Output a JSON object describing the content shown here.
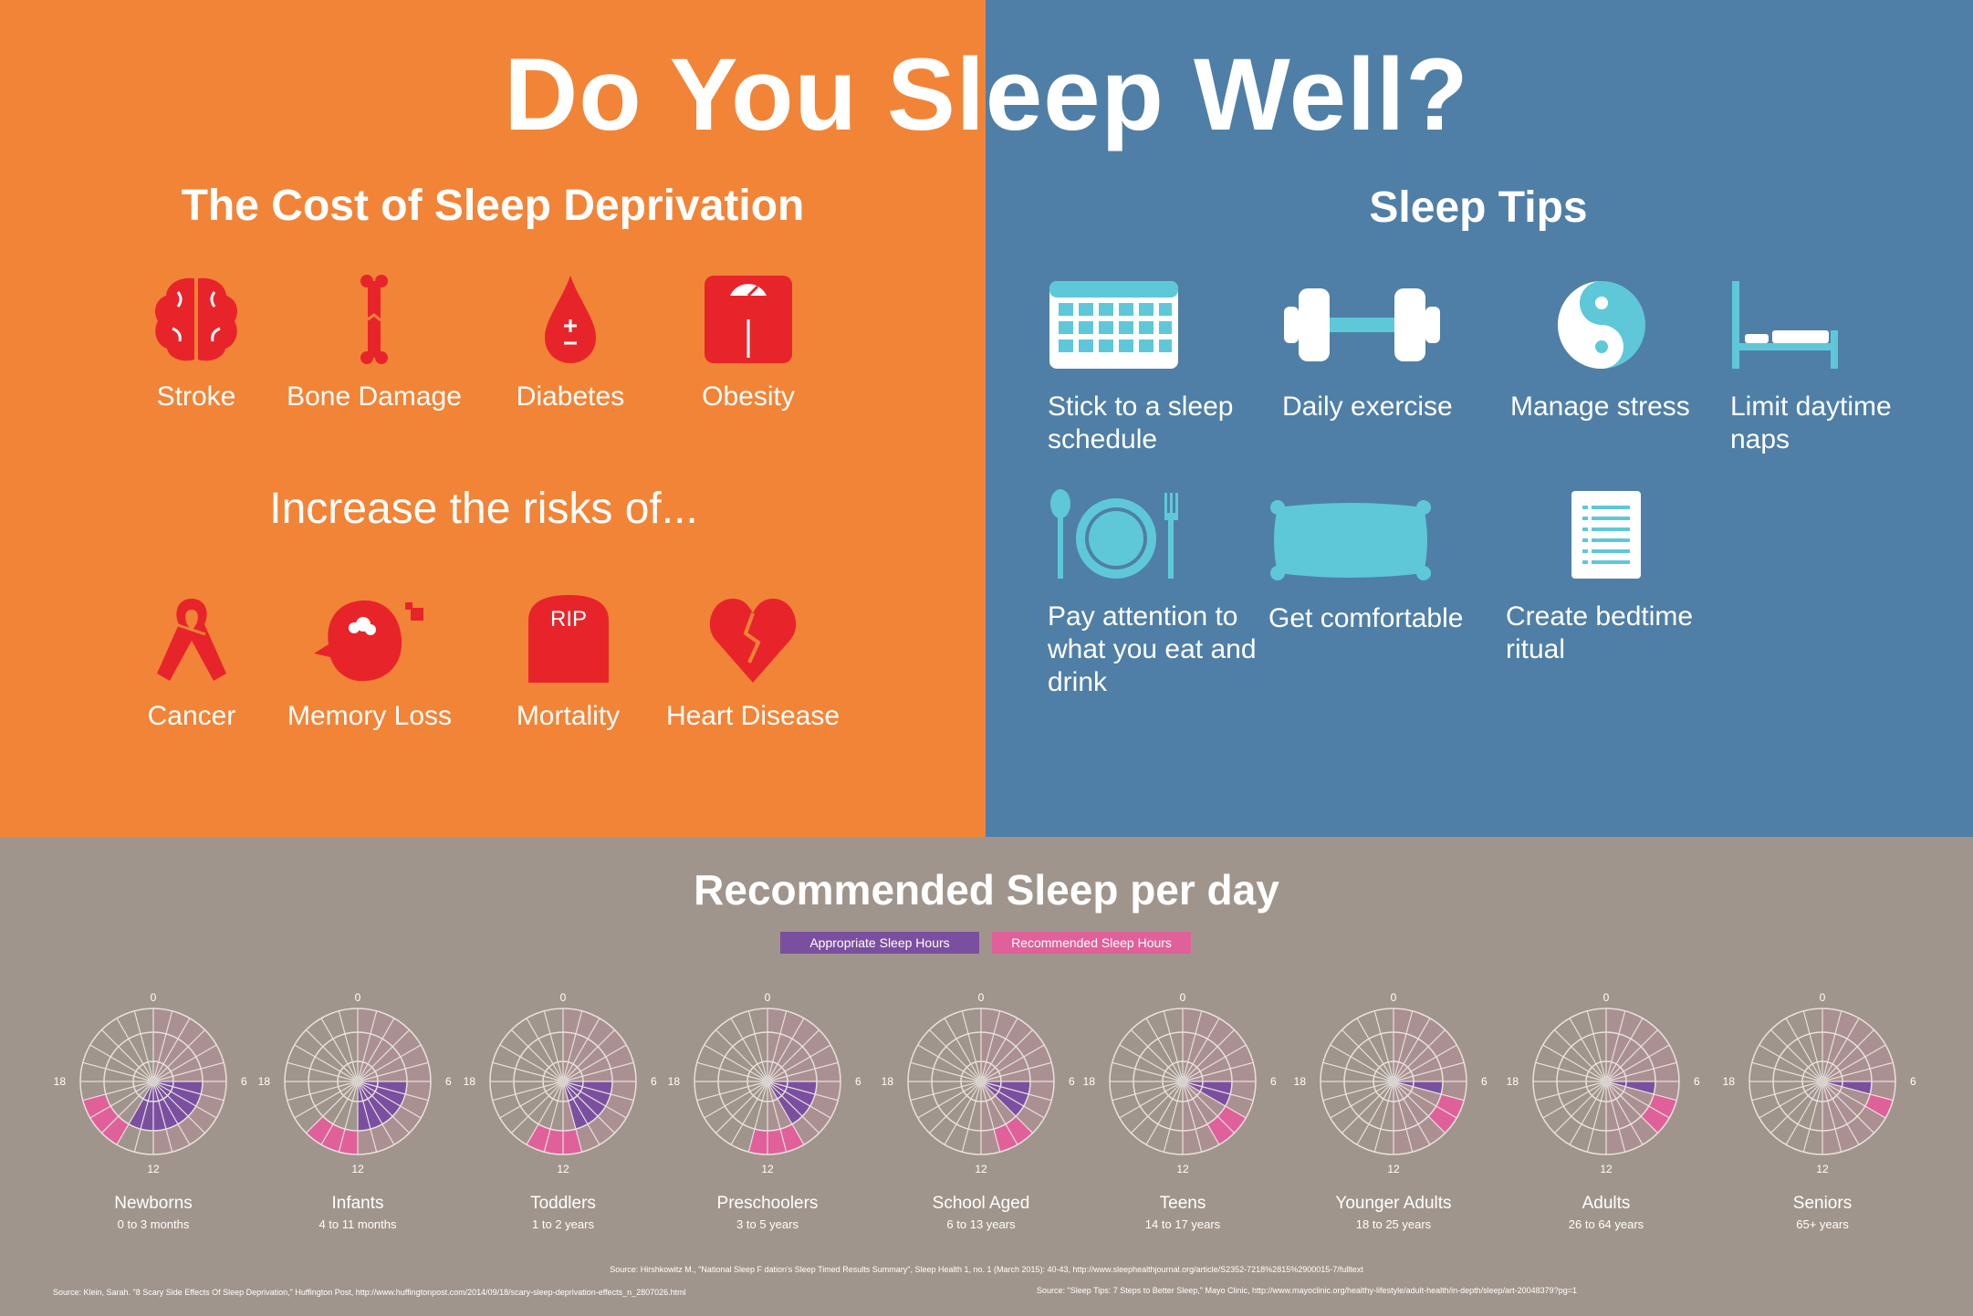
{
  "title": "Do You Sleep Well?",
  "left": {
    "heading": "The Cost of Sleep Deprivation",
    "effects": [
      "Stroke",
      "Bone Damage",
      "Diabetes",
      "Obesity"
    ],
    "subheading": "Increase the risks of...",
    "risks": [
      "Cancer",
      "Memory Loss",
      "Mortality",
      "Heart Disease"
    ],
    "rip_text": "RIP"
  },
  "right": {
    "heading": "Sleep Tips",
    "tips": [
      "Stick to a sleep schedule",
      "Daily exercise",
      "Manage stress",
      "Limit daytime naps",
      "Pay attention to what you eat and drink",
      "Get comfortable",
      "Create bedtime ritual"
    ]
  },
  "colors": {
    "orange": "#f28437",
    "blue": "#4f7fa6",
    "taupe": "#a0958c",
    "red": "#e8242b",
    "cyan": "#5ec8d8",
    "purple": "#7b4fa0",
    "pink": "#e0609a"
  },
  "chart_data": {
    "type": "radial",
    "title": "Recommended Sleep per day",
    "legend": [
      "Appropriate Sleep Hours",
      "Recommended Sleep Hours"
    ],
    "axis_labels": [
      "0",
      "6",
      "12",
      "18"
    ],
    "hours_in_day": 24,
    "groups": [
      {
        "name": "Newborns",
        "age": "0 to 3 months",
        "appropriate": [
          6,
          14
        ],
        "recommended": [
          14,
          17
        ]
      },
      {
        "name": "Infants",
        "age": "4 to 11 months",
        "appropriate": [
          6,
          12
        ],
        "recommended": [
          12,
          15
        ]
      },
      {
        "name": "Toddlers",
        "age": "1 to 2 years",
        "appropriate": [
          6,
          11
        ],
        "recommended": [
          11,
          14
        ]
      },
      {
        "name": "Preschoolers",
        "age": "3 to 5 years",
        "appropriate": [
          6,
          10
        ],
        "recommended": [
          10,
          13
        ]
      },
      {
        "name": "School Aged",
        "age": "6 to 13 years",
        "appropriate": [
          6,
          9
        ],
        "recommended": [
          9,
          11
        ]
      },
      {
        "name": "Teens",
        "age": "14 to 17 years",
        "appropriate": [
          6,
          8
        ],
        "recommended": [
          8,
          10
        ]
      },
      {
        "name": "Younger Adults",
        "age": "18 to 25 years",
        "appropriate": [
          6,
          7
        ],
        "recommended": [
          7,
          9
        ]
      },
      {
        "name": "Adults",
        "age": "26 to 64 years",
        "appropriate": [
          6,
          7
        ],
        "recommended": [
          7,
          9
        ]
      },
      {
        "name": "Seniors",
        "age": "65+ years",
        "appropriate": [
          6,
          7
        ],
        "recommended": [
          7,
          8
        ]
      }
    ]
  },
  "sources": {
    "center": "Source: Hirshkowitz M., \"National Sleep F dation's Sleep Timed Results Summary\", Sleep Health 1, no. 1 (March 2015): 40-43, http://www.sleephealthjournal.org/article/S2352-7218%2815%2900015-7/fulltext",
    "left": "Source: Klein, Sarah. \"8 Scary Side Effects Of Sleep Deprivation,\" Huffington Post, http://www.huffingtonpost.com/2014/09/18/scary-sleep-deprivation-effects_n_2807026.html",
    "right": "Source: \"Sleep Tips: 7 Steps to Better Sleep,\" Mayo Clinic, http://www.mayoclinic.org/healthy-lifestyle/adult-health/in-depth/sleep/art-20048379?pg=1"
  }
}
